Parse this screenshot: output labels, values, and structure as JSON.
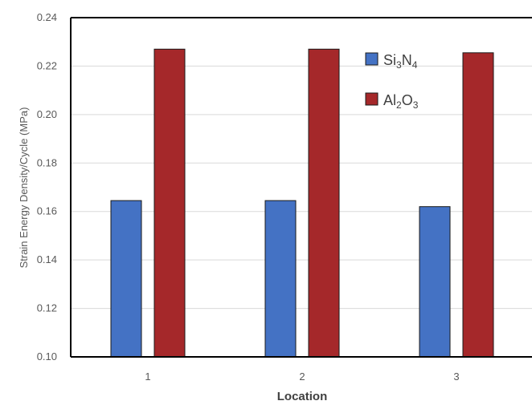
{
  "chart_data": {
    "type": "bar",
    "categories": [
      "1",
      "2",
      "3"
    ],
    "series": [
      {
        "name": "Si3N4",
        "label_main": "Si",
        "label_sub1": "3",
        "label_mid": "N",
        "label_sub2": "4",
        "color": "#4472c4",
        "values": [
          0.1645,
          0.1645,
          0.162
        ]
      },
      {
        "name": "Al2O3",
        "label_main": "Al",
        "label_sub1": "2",
        "label_mid": "O",
        "label_sub2": "3",
        "color": "#a5282a",
        "values": [
          0.227,
          0.227,
          0.2255
        ]
      }
    ],
    "xlabel": "Location",
    "ylabel": "Strain Energy Density/Cycle (MPa)",
    "ylim": [
      0.1,
      0.24
    ],
    "yticks": [
      "0.10",
      "0.12",
      "0.14",
      "0.16",
      "0.18",
      "0.20",
      "0.22",
      "0.24"
    ],
    "grid": true,
    "legend_position": "top-right"
  }
}
